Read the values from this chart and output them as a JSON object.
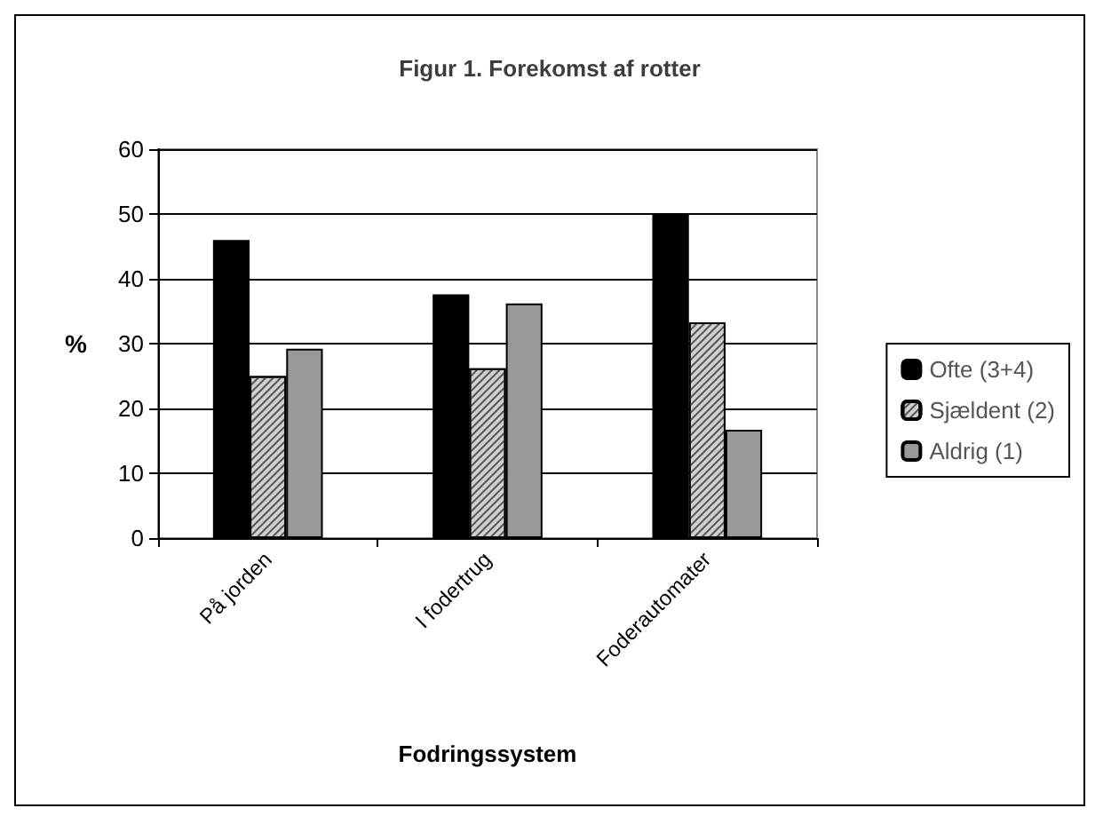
{
  "chart_data": {
    "type": "bar",
    "title": "Figur 1. Forekomst af rotter",
    "xlabel": "Fodringssystem",
    "ylabel": "%",
    "categories": [
      "På jorden",
      "I fodertrug",
      "Foderautomater"
    ],
    "series": [
      {
        "name": "Ofte (3+4)",
        "color": "#000000",
        "values": [
          46,
          37.6,
          50
        ]
      },
      {
        "name": "Sjældent (2)",
        "color": "#d0d0d0",
        "values": [
          25,
          26.2,
          33.3
        ]
      },
      {
        "name": "Aldrig (1)",
        "color": "#999999",
        "values": [
          29.2,
          36.2,
          16.7
        ]
      }
    ],
    "ylim": [
      0,
      60
    ],
    "yticks": [
      0,
      10,
      20,
      30,
      40,
      50,
      60
    ],
    "grid": "y",
    "legend": "right"
  }
}
